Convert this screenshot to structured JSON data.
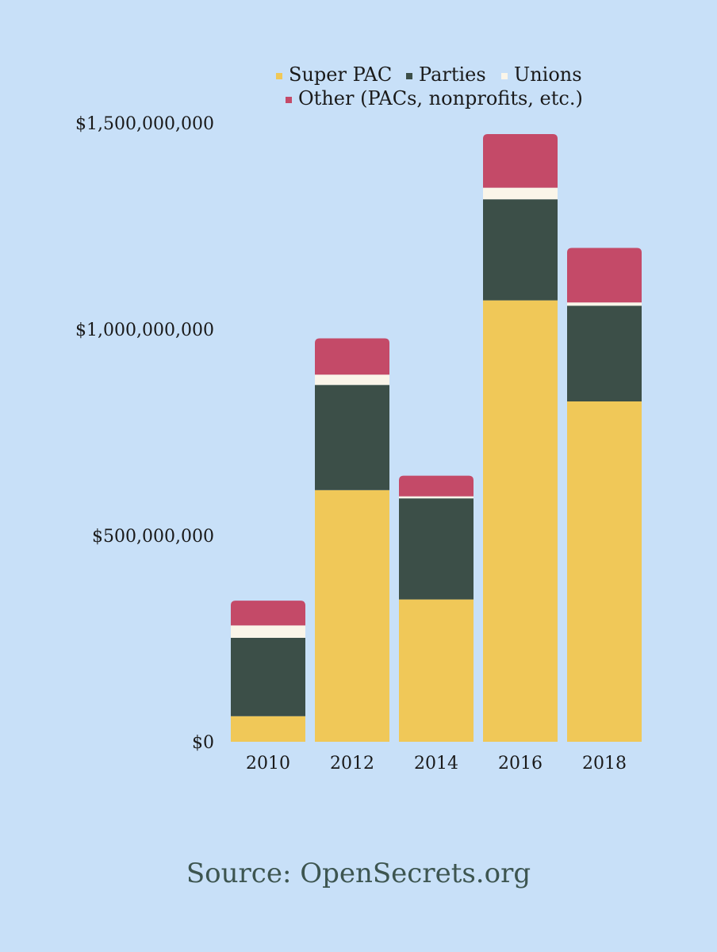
{
  "chart_data": {
    "type": "bar",
    "stacked": true,
    "categories": [
      "2010",
      "2012",
      "2014",
      "2016",
      "2018"
    ],
    "series": [
      {
        "name": "Super PAC",
        "color": "#f0c858",
        "values": [
          62000000,
          610000000,
          345000000,
          1070000000,
          825000000
        ]
      },
      {
        "name": "Parties",
        "color": "#3c4f48",
        "values": [
          190000000,
          255000000,
          245000000,
          245000000,
          232000000
        ]
      },
      {
        "name": "Unions",
        "color": "#faf5e9",
        "values": [
          30000000,
          25000000,
          5000000,
          28000000,
          8000000
        ]
      },
      {
        "name": "Other (PACs, nonprofits, etc.)",
        "color": "#c44a68",
        "values": [
          60000000,
          88000000,
          50000000,
          130000000,
          132000000
        ]
      }
    ],
    "yticks": [
      "$0",
      "$500,000,000",
      "$1,000,000,000",
      "$1,500,000,000"
    ],
    "ytick_values": [
      0,
      500000000,
      1000000000,
      1500000000
    ],
    "ylim": [
      0,
      1500000000
    ],
    "legend_position": "top"
  },
  "source": "Source: OpenSecrets.org"
}
